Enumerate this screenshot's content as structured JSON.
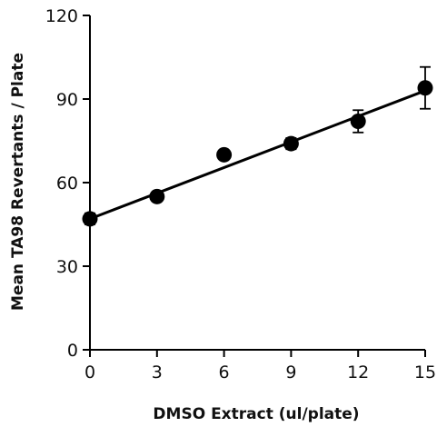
{
  "chart_data": {
    "type": "scatter",
    "title": "",
    "xlabel": "DMSO Extract (ul/plate)",
    "ylabel": "Mean TA98 Revertants / Plate",
    "xlim": [
      0,
      15
    ],
    "ylim": [
      0,
      120
    ],
    "x_ticks": [
      "0",
      "3",
      "6",
      "9",
      "12",
      "15"
    ],
    "y_ticks": [
      "0",
      "30",
      "60",
      "90",
      "120"
    ],
    "grid": false,
    "legend": "none",
    "series": [
      {
        "x": [
          0,
          3,
          6,
          9,
          12,
          15
        ],
        "values": [
          47,
          55,
          70,
          74,
          82,
          94
        ],
        "error": [
          2,
          1.5,
          1,
          2,
          4,
          7.5
        ]
      }
    ],
    "fit_line": {
      "x": [
        0,
        15
      ],
      "y": [
        47,
        93
      ]
    },
    "colors": {
      "marker": "#000000",
      "line": "#000000"
    }
  }
}
